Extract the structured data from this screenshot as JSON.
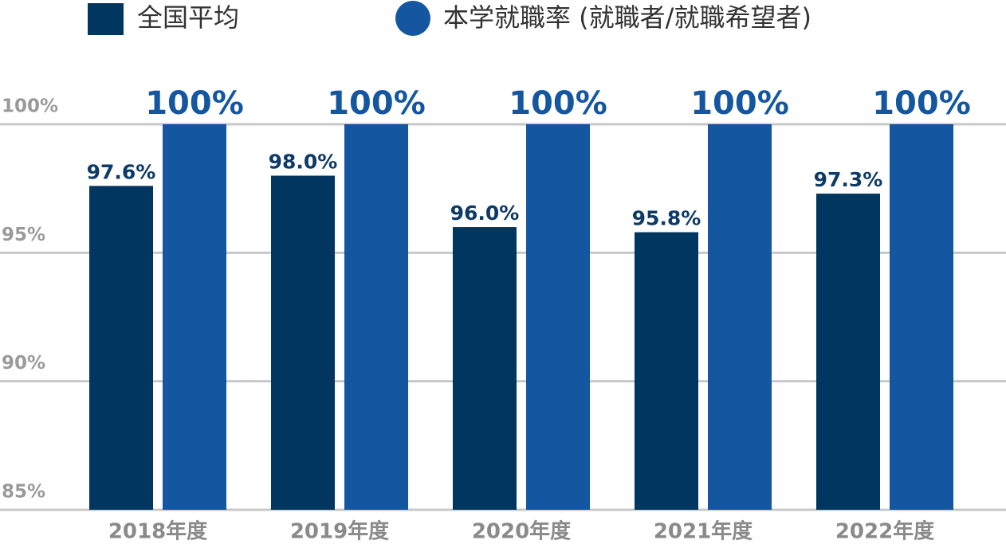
{
  "chart_data": {
    "type": "bar",
    "categories": [
      "2018年度",
      "2019年度",
      "2020年度",
      "2021年度",
      "2022年度"
    ],
    "series": [
      {
        "name": "全国平均",
        "color": "#003660",
        "values": [
          97.6,
          98.0,
          96.0,
          95.8,
          97.3
        ],
        "value_labels": [
          "97.6%",
          "98.0%",
          "96.0%",
          "95.8%",
          "97.3%"
        ]
      },
      {
        "name": "本学就職率 (就職者/就職希望者)",
        "color": "#1456a0",
        "values": [
          100,
          100,
          100,
          100,
          100
        ],
        "value_labels": [
          "100%",
          "100%",
          "100%",
          "100%",
          "100%"
        ]
      }
    ],
    "ylim": [
      85,
      100
    ],
    "yticks": [
      {
        "value": 85,
        "label": "85%"
      },
      {
        "value": 90,
        "label": "90%"
      },
      {
        "value": 95,
        "label": "95%"
      },
      {
        "value": 100,
        "label": "100%"
      }
    ],
    "grid": true
  }
}
